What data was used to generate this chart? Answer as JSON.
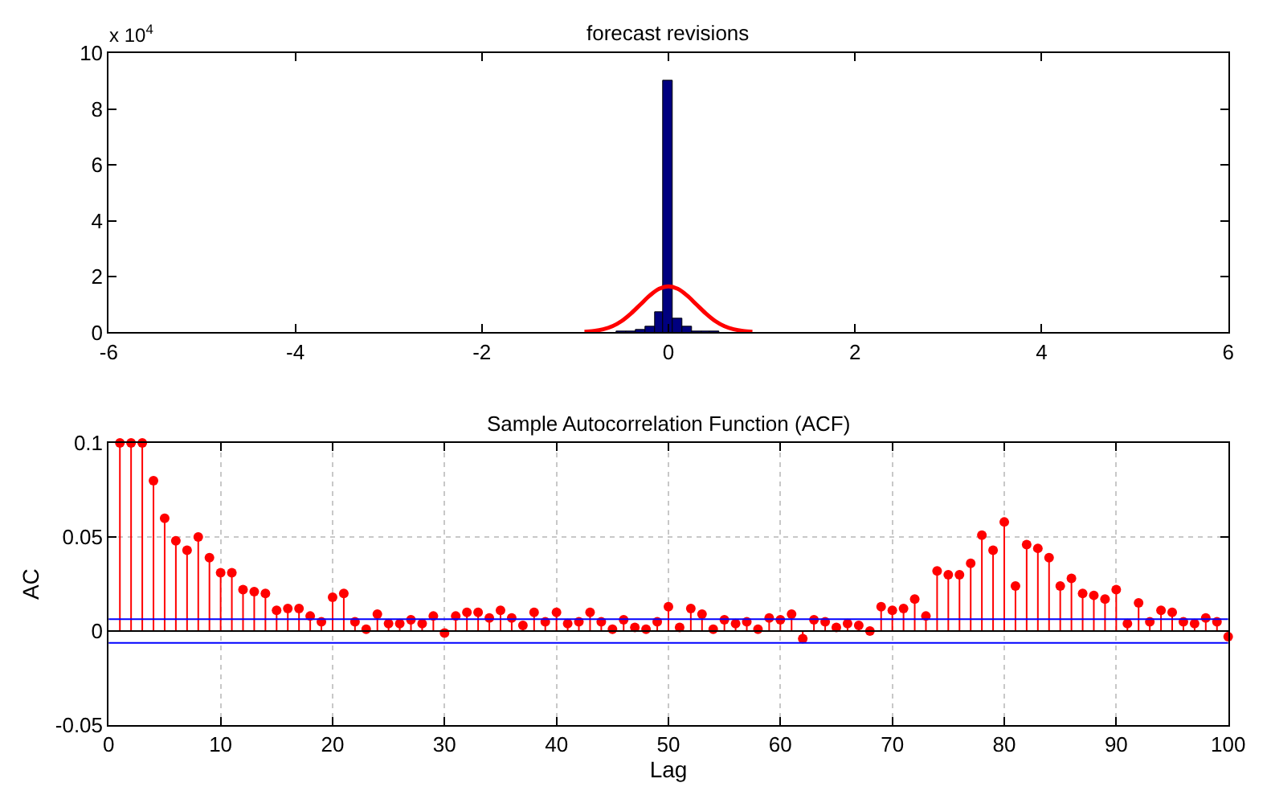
{
  "chart_data": [
    {
      "type": "histogram",
      "title": "forecast revisions",
      "annotations": [
        "x 10$^{4}$"
      ],
      "bins": [
        -0.55,
        -0.45,
        -0.35,
        -0.25,
        -0.15,
        -0.05,
        0.05,
        0.15,
        0.25,
        0.35,
        0.45,
        0.55
      ],
      "values": [
        0.01,
        0.03,
        0.09,
        0.19,
        0.71,
        9.0,
        0.49,
        0.19,
        0.06,
        0.03,
        0.01
      ],
      "color": "#00007f",
      "series": [
        {
          "type": "line",
          "color": "#ff0000",
          "x": [
            -0.9,
            -0.8,
            -0.7,
            -0.6,
            -0.5,
            -0.4,
            -0.3,
            -0.2,
            -0.1,
            0,
            0.1,
            0.2,
            0.3,
            0.4,
            0.5,
            0.6,
            0.7,
            0.8,
            0.9
          ],
          "values": [
            0.02,
            0.05,
            0.11,
            0.22,
            0.41,
            0.68,
            1.0,
            1.32,
            1.56,
            1.65,
            1.56,
            1.32,
            1.0,
            0.68,
            0.41,
            0.22,
            0.11,
            0.05,
            0.02
          ]
        }
      ],
      "xlim": [
        -6,
        6
      ],
      "xticks": [
        -6,
        -4,
        -2,
        0,
        2,
        4,
        6
      ],
      "ylim": [
        0,
        10
      ],
      "yticks": [
        0,
        2,
        4,
        6,
        8,
        10
      ],
      "grid": false
    },
    {
      "type": "lollipop",
      "title": "Sample Autocorrelation Function (ACF)",
      "xlabel": "Lag",
      "ylabel": "AC",
      "x": [
        1,
        2,
        3,
        4,
        5,
        6,
        7,
        8,
        9,
        10,
        11,
        12,
        13,
        14,
        15,
        16,
        17,
        18,
        19,
        20,
        21,
        22,
        23,
        24,
        25,
        26,
        27,
        28,
        29,
        30,
        31,
        32,
        33,
        34,
        35,
        36,
        37,
        38,
        39,
        40,
        41,
        42,
        43,
        44,
        45,
        46,
        47,
        48,
        49,
        50,
        51,
        52,
        53,
        54,
        55,
        56,
        57,
        58,
        59,
        60,
        61,
        62,
        63,
        64,
        65,
        66,
        67,
        68,
        69,
        70,
        71,
        72,
        73,
        74,
        75,
        76,
        77,
        78,
        79,
        80,
        81,
        82,
        83,
        84,
        85,
        86,
        87,
        88,
        89,
        90,
        91,
        92,
        93,
        94,
        95,
        96,
        97,
        98,
        99,
        100
      ],
      "values": [
        0.1,
        0.1,
        0.1,
        0.08,
        0.06,
        0.048,
        0.043,
        0.05,
        0.039,
        0.031,
        0.031,
        0.022,
        0.021,
        0.02,
        0.011,
        0.012,
        0.012,
        0.008,
        0.005,
        0.018,
        0.02,
        0.005,
        0.001,
        0.009,
        0.004,
        0.004,
        0.006,
        0.004,
        0.008,
        -0.001,
        0.008,
        0.01,
        0.01,
        0.007,
        0.011,
        0.007,
        0.003,
        0.01,
        0.005,
        0.01,
        0.004,
        0.005,
        0.01,
        0.005,
        0.001,
        0.006,
        0.002,
        0.001,
        0.005,
        0.013,
        0.002,
        0.012,
        0.009,
        0.001,
        0.006,
        0.004,
        0.005,
        0.001,
        0.007,
        0.006,
        0.009,
        -0.004,
        0.006,
        0.005,
        0.002,
        0.004,
        0.003,
        0.0,
        0.013,
        0.011,
        0.012,
        0.017,
        0.008,
        0.032,
        0.03,
        0.03,
        0.036,
        0.051,
        0.043,
        0.058,
        0.024,
        0.046,
        0.044,
        0.039,
        0.024,
        0.028,
        0.02,
        0.019,
        0.017,
        0.022,
        0.004,
        0.015,
        0.005,
        0.011,
        0.01,
        0.005,
        0.004,
        0.007,
        0.005,
        -0.003
      ],
      "color": "#ff0000",
      "marker": "circle",
      "ref_lines": [
        {
          "axis": "y",
          "value": 0.0063,
          "color": "#0000ff"
        },
        {
          "axis": "y",
          "value": -0.0063,
          "color": "#0000ff"
        }
      ],
      "xlim": [
        0,
        100
      ],
      "xticks": [
        0,
        10,
        20,
        30,
        40,
        50,
        60,
        70,
        80,
        90,
        100
      ],
      "ylim": [
        -0.05,
        0.1
      ],
      "yticks": [
        -0.05,
        0,
        0.05,
        0.1
      ],
      "grid": true
    }
  ]
}
